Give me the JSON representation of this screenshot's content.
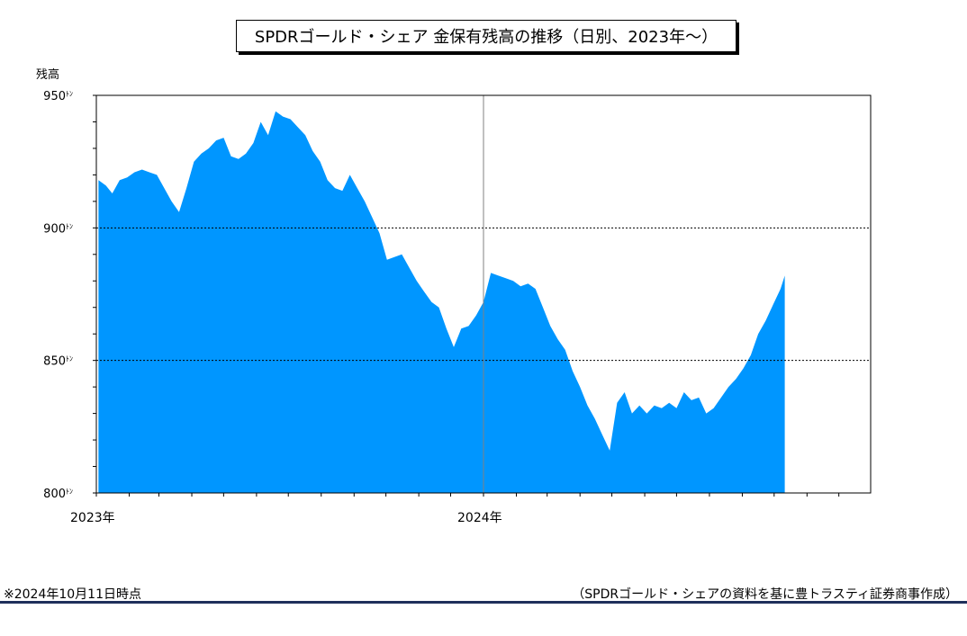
{
  "chart_data": {
    "type": "area",
    "title": "SPDRゴールド・シェア 金保有残高の推移（日別、2023年～）",
    "ylabel": "残高",
    "xlabel": "",
    "ylim": [
      800,
      950
    ],
    "yticks": [
      "800ﾄﾝ",
      "850ﾄﾝ",
      "900ﾄﾝ",
      "950ﾄﾝ"
    ],
    "ytick_values": [
      800,
      850,
      900,
      950
    ],
    "xticks": [
      "2023年",
      "2024年"
    ],
    "xtick_dates": [
      "2023-01-01",
      "2024-01-01"
    ],
    "xlim": [
      "2023-01-01",
      "2024-12-31"
    ],
    "grid": "dotted horizontal at 850 and 900; vertical line at 2024-01-01",
    "fill_color": "#0096ff",
    "series": [
      {
        "values": [
          [
            "2023-01-03",
            918
          ],
          [
            "2023-01-10",
            916
          ],
          [
            "2023-01-16",
            913
          ],
          [
            "2023-01-23",
            918
          ],
          [
            "2023-01-30",
            919
          ],
          [
            "2023-02-06",
            921
          ],
          [
            "2023-02-13",
            922
          ],
          [
            "2023-02-20",
            921
          ],
          [
            "2023-02-27",
            920
          ],
          [
            "2023-03-06",
            915
          ],
          [
            "2023-03-13",
            910
          ],
          [
            "2023-03-20",
            906
          ],
          [
            "2023-03-27",
            915
          ],
          [
            "2023-04-03",
            925
          ],
          [
            "2023-04-10",
            928
          ],
          [
            "2023-04-17",
            930
          ],
          [
            "2023-04-24",
            933
          ],
          [
            "2023-05-01",
            934
          ],
          [
            "2023-05-08",
            927
          ],
          [
            "2023-05-15",
            926
          ],
          [
            "2023-05-22",
            928
          ],
          [
            "2023-05-29",
            932
          ],
          [
            "2023-06-05",
            940
          ],
          [
            "2023-06-12",
            935
          ],
          [
            "2023-06-19",
            944
          ],
          [
            "2023-06-26",
            942
          ],
          [
            "2023-07-03",
            941
          ],
          [
            "2023-07-10",
            938
          ],
          [
            "2023-07-17",
            935
          ],
          [
            "2023-07-24",
            929
          ],
          [
            "2023-07-31",
            925
          ],
          [
            "2023-08-07",
            918
          ],
          [
            "2023-08-14",
            915
          ],
          [
            "2023-08-21",
            914
          ],
          [
            "2023-08-28",
            920
          ],
          [
            "2023-09-04",
            915
          ],
          [
            "2023-09-11",
            910
          ],
          [
            "2023-09-18",
            904
          ],
          [
            "2023-09-25",
            898
          ],
          [
            "2023-10-02",
            888
          ],
          [
            "2023-10-09",
            889
          ],
          [
            "2023-10-16",
            890
          ],
          [
            "2023-10-23",
            885
          ],
          [
            "2023-10-30",
            880
          ],
          [
            "2023-11-06",
            876
          ],
          [
            "2023-11-13",
            872
          ],
          [
            "2023-11-20",
            870
          ],
          [
            "2023-11-27",
            862
          ],
          [
            "2023-12-04",
            855
          ],
          [
            "2023-12-11",
            862
          ],
          [
            "2023-12-18",
            863
          ],
          [
            "2023-12-25",
            867
          ],
          [
            "2024-01-01",
            872
          ],
          [
            "2024-01-08",
            883
          ],
          [
            "2024-01-15",
            882
          ],
          [
            "2024-01-22",
            881
          ],
          [
            "2024-01-29",
            880
          ],
          [
            "2024-02-05",
            878
          ],
          [
            "2024-02-12",
            879
          ],
          [
            "2024-02-19",
            877
          ],
          [
            "2024-02-26",
            870
          ],
          [
            "2024-03-04",
            863
          ],
          [
            "2024-03-11",
            858
          ],
          [
            "2024-03-18",
            854
          ],
          [
            "2024-03-25",
            846
          ],
          [
            "2024-04-01",
            840
          ],
          [
            "2024-04-08",
            833
          ],
          [
            "2024-04-15",
            828
          ],
          [
            "2024-04-22",
            822
          ],
          [
            "2024-04-29",
            816
          ],
          [
            "2024-05-06",
            834
          ],
          [
            "2024-05-13",
            838
          ],
          [
            "2024-05-20",
            830
          ],
          [
            "2024-05-27",
            833
          ],
          [
            "2024-06-03",
            830
          ],
          [
            "2024-06-10",
            833
          ],
          [
            "2024-06-17",
            832
          ],
          [
            "2024-06-24",
            834
          ],
          [
            "2024-07-01",
            832
          ],
          [
            "2024-07-08",
            838
          ],
          [
            "2024-07-15",
            835
          ],
          [
            "2024-07-22",
            836
          ],
          [
            "2024-07-29",
            830
          ],
          [
            "2024-08-05",
            832
          ],
          [
            "2024-08-12",
            836
          ],
          [
            "2024-08-19",
            840
          ],
          [
            "2024-08-26",
            843
          ],
          [
            "2024-09-02",
            847
          ],
          [
            "2024-09-09",
            852
          ],
          [
            "2024-09-16",
            860
          ],
          [
            "2024-09-23",
            865
          ],
          [
            "2024-09-30",
            871
          ],
          [
            "2024-10-07",
            877
          ],
          [
            "2024-10-11",
            882
          ]
        ]
      }
    ]
  },
  "footer": {
    "note": "※2024年10月11日時点",
    "source": "（SPDRゴールド・シェアの資料を基に豊トラスティ証券商事作成）"
  }
}
